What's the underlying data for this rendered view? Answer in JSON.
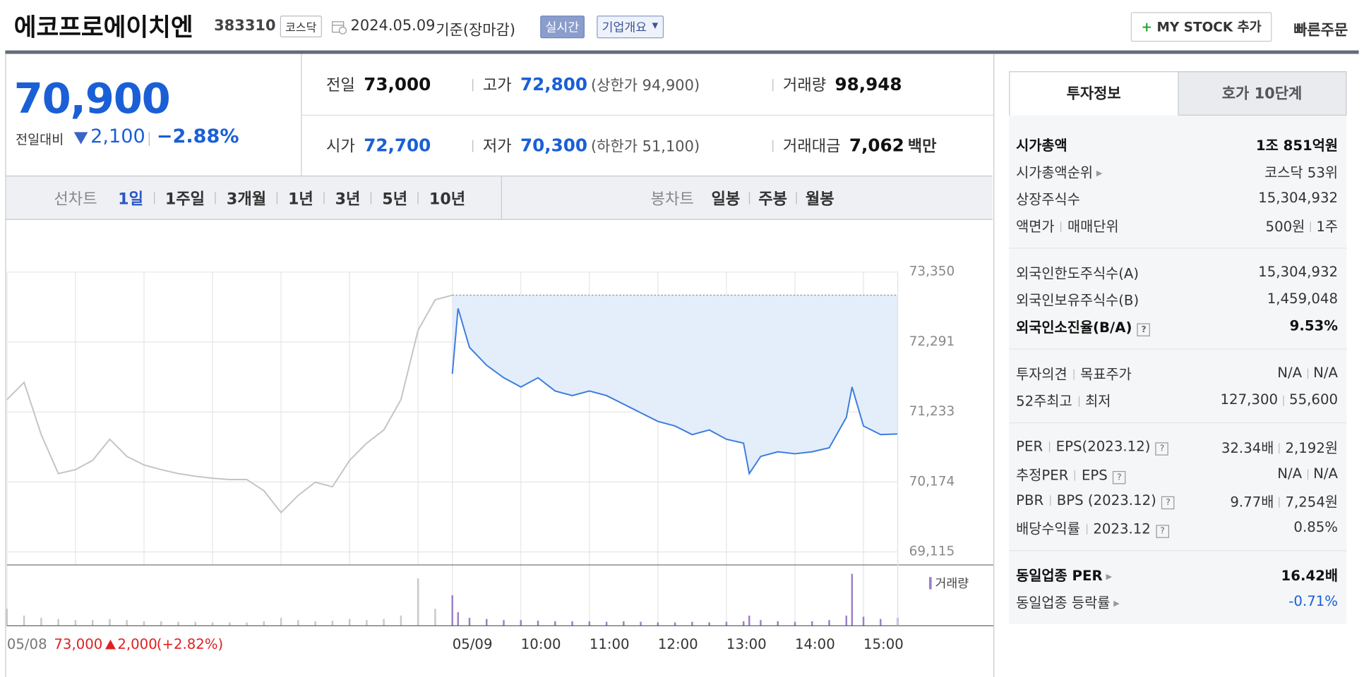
{
  "header": {
    "name": "에코프로에이치엔",
    "code": "383310",
    "market": "코스닥",
    "date": "2024.05.09",
    "basis": "기준(장마감)",
    "realtime": "실시간",
    "overview": "기업개요",
    "mystock": "MY STOCK 추가",
    "quick_order": "빠른주문"
  },
  "quote": {
    "price": "70,900",
    "change_label": "전일대비",
    "change": "2,100",
    "rate": "−2.88%",
    "cells": [
      {
        "label": "전일",
        "value": "73,000"
      },
      {
        "label": "고가",
        "value": "72,800",
        "note": "(상한가 94,900)"
      },
      {
        "label": "거래량",
        "value": "98,948"
      },
      {
        "label": "시가",
        "value": "72,700"
      },
      {
        "label": "저가",
        "value": "70,300",
        "note": "(하한가 51,100)"
      },
      {
        "label": "거래대금",
        "value": "7,062",
        "unit": "백만"
      }
    ]
  },
  "tabs": {
    "line": {
      "label": "선차트",
      "items": [
        "1일",
        "1주일",
        "3개월",
        "1년",
        "3년",
        "5년",
        "10년"
      ],
      "selected": 0
    },
    "candle": {
      "label": "봉차트",
      "items": [
        "일봉",
        "주봉",
        "월봉"
      ]
    }
  },
  "chart_data": {
    "type": "line",
    "grid": true,
    "xlim": [
      "09:00",
      "15:30"
    ],
    "ylim": [
      68918,
      73350
    ],
    "yticks": [
      {
        "value": 73350,
        "label": "73,350"
      },
      {
        "value": 72291,
        "label": "72,291"
      },
      {
        "value": 71233,
        "label": "71,233"
      },
      {
        "value": 70174,
        "label": "70,174"
      },
      {
        "value": 69115,
        "label": "69,115"
      }
    ],
    "xticks": [
      "05/08",
      "05/09",
      "10:00",
      "11:00",
      "12:00",
      "13:00",
      "14:00",
      "15:00"
    ],
    "volume_label": "거래량",
    "volume_ylim": [
      0,
      5000
    ],
    "summary": {
      "close": "73,000",
      "change": "2,000",
      "rate": "(+2.82%)"
    },
    "series": [
      {
        "name": "05/08",
        "color": "#c4c4c4",
        "volume_color": "#c9c9c9",
        "x": [
          "09:00",
          "09:15",
          "09:30",
          "09:45",
          "10:00",
          "10:15",
          "10:30",
          "10:45",
          "11:00",
          "11:15",
          "11:30",
          "11:45",
          "12:00",
          "12:15",
          "12:30",
          "12:45",
          "13:00",
          "13:15",
          "13:30",
          "13:45",
          "14:00",
          "14:15",
          "14:30",
          "14:45",
          "15:00",
          "15:15",
          "15:30"
        ],
        "values": [
          71420,
          71680,
          70890,
          70300,
          70360,
          70500,
          70820,
          70560,
          70430,
          70360,
          70300,
          70260,
          70230,
          70210,
          70210,
          70040,
          69710,
          69970,
          70170,
          70100,
          70500,
          70760,
          70960,
          71420,
          72470,
          72930,
          73000
        ],
        "volume": [
          1500,
          900,
          700,
          600,
          500,
          500,
          600,
          500,
          400,
          400,
          350,
          350,
          300,
          300,
          300,
          400,
          700,
          500,
          400,
          450,
          600,
          500,
          600,
          900,
          4200,
          1500,
          800
        ]
      },
      {
        "name": "05/09",
        "color": "#3b7ddd",
        "volume_color": "#9b80c8",
        "x": [
          "09:00",
          "09:05",
          "09:15",
          "09:30",
          "09:45",
          "10:00",
          "10:15",
          "10:30",
          "10:45",
          "11:00",
          "11:15",
          "11:30",
          "11:45",
          "12:00",
          "12:15",
          "12:30",
          "12:45",
          "13:00",
          "13:15",
          "13:20",
          "13:30",
          "13:45",
          "14:00",
          "14:15",
          "14:30",
          "14:45",
          "14:50",
          "15:00",
          "15:15",
          "15:30"
        ],
        "values": [
          71810,
          72800,
          72210,
          71940,
          71750,
          71610,
          71750,
          71550,
          71480,
          71550,
          71480,
          71350,
          71220,
          71090,
          71020,
          70890,
          70960,
          70820,
          70760,
          70300,
          70560,
          70630,
          70600,
          70630,
          70690,
          71150,
          71610,
          71020,
          70890,
          70900
        ],
        "volume": [
          2700,
          1200,
          700,
          600,
          500,
          500,
          450,
          400,
          400,
          380,
          350,
          400,
          350,
          300,
          300,
          350,
          300,
          350,
          400,
          900,
          500,
          400,
          350,
          400,
          500,
          900,
          4600,
          800,
          600,
          700
        ]
      }
    ]
  },
  "info": {
    "tabs": [
      "투자정보",
      "호가 10단계"
    ],
    "groups": [
      [
        {
          "labels": [
            "시가총액"
          ],
          "values": [
            "1조 851억원"
          ],
          "emphasis": true
        },
        {
          "labels": [
            "시가총액순위"
          ],
          "link": true,
          "values": [
            "코스닥 53위"
          ]
        },
        {
          "labels": [
            "상장주식수"
          ],
          "values": [
            "15,304,932"
          ]
        },
        {
          "labels": [
            "액면가",
            "매매단위"
          ],
          "values": [
            "500원",
            "1주"
          ]
        }
      ],
      [
        {
          "labels": [
            "외국인한도주식수(A)"
          ],
          "values": [
            "15,304,932"
          ]
        },
        {
          "labels": [
            "외국인보유주식수(B)"
          ],
          "values": [
            "1,459,048"
          ]
        },
        {
          "labels": [
            "외국인소진율(B/A)"
          ],
          "help": true,
          "values": [
            "9.53%"
          ],
          "emphasis": true
        }
      ],
      [
        {
          "labels": [
            "투자의견",
            "목표주가"
          ],
          "values": [
            "N/A",
            "N/A"
          ]
        },
        {
          "labels": [
            "52주최고",
            "최저"
          ],
          "values": [
            "127,300",
            "55,600"
          ]
        }
      ],
      [
        {
          "labels": [
            "PER",
            "EPS(2023.12)"
          ],
          "help": true,
          "values": [
            "32.34배",
            "2,192원"
          ]
        },
        {
          "labels": [
            "추정PER",
            "EPS"
          ],
          "help": true,
          "values": [
            "N/A",
            "N/A"
          ]
        },
        {
          "labels": [
            "PBR",
            "BPS (2023.12)"
          ],
          "help": true,
          "values": [
            "9.77배",
            "7,254원"
          ]
        },
        {
          "labels": [
            "배당수익률",
            "2023.12"
          ],
          "help": true,
          "values": [
            "0.85%"
          ]
        }
      ],
      [
        {
          "labels": [
            "동일업종 PER"
          ],
          "link": true,
          "values": [
            "16.42배"
          ],
          "emphasis": true
        },
        {
          "labels": [
            "동일업종 등락률"
          ],
          "link": true,
          "values": [
            "-0.71%"
          ],
          "color": "#1a5fd6"
        }
      ]
    ]
  }
}
